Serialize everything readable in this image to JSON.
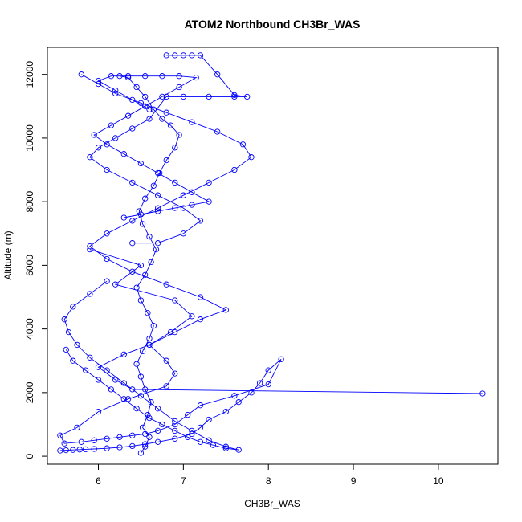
{
  "chart_data": {
    "type": "scatter",
    "title": "ATOM2 Northbound CH3Br_WAS",
    "xlabel": "CH3Br_WAS",
    "ylabel": "Altitude (m)",
    "xlim": [
      5.4,
      10.7
    ],
    "ylim": [
      -250,
      12850
    ],
    "xticks": [
      6,
      7,
      8,
      9,
      10
    ],
    "xtick_labels": [
      "6",
      "7",
      "8",
      "9",
      "10"
    ],
    "yticks": [
      0,
      2000,
      4000,
      6000,
      8000,
      10000,
      12000
    ],
    "ytick_labels": [
      "0",
      "2000",
      "4000",
      "6000",
      "8000",
      "10000",
      "12000"
    ],
    "grid": false,
    "legend": "none",
    "series": [
      {
        "color": "#0000ff",
        "marker": "open-circle",
        "connected": true,
        "x": [
          5.55,
          5.62,
          5.7,
          5.78,
          5.85,
          5.95,
          6.1,
          6.25,
          6.4,
          6.55,
          6.7,
          6.9,
          7.1,
          7.2,
          7.3,
          7.5,
          7.65,
          7.8,
          7.9,
          8.0,
          8.15,
          8.0,
          7.6,
          7.2,
          7.05,
          6.9,
          6.7,
          6.55,
          6.4,
          6.25,
          6.1,
          5.95,
          5.8,
          5.6,
          5.55,
          5.75,
          6.0,
          6.35,
          6.8,
          6.9,
          6.8,
          6.6,
          6.85,
          7.1,
          6.9,
          6.2,
          6.5,
          5.9
        ],
        "y": [
          180,
          190,
          200,
          210,
          220,
          230,
          250,
          280,
          320,
          380,
          450,
          550,
          700,
          900,
          1150,
          1400,
          1700,
          2000,
          2300,
          2700,
          3050,
          2260,
          1900,
          1600,
          1300,
          1000,
          800,
          700,
          650,
          600,
          550,
          500,
          450,
          400,
          650,
          900,
          1400,
          1800,
          2200,
          2600,
          3000,
          3500,
          3900,
          4400,
          4900,
          5400,
          6000,
          6500
        ]
      },
      {
        "color": "#0000ff",
        "marker": "open-circle",
        "connected": true,
        "x": [
          6.5,
          6.55,
          6.6,
          6.52,
          6.58,
          6.62,
          6.55,
          6.5,
          6.45,
          6.52,
          6.6,
          6.65,
          6.58,
          6.5,
          6.45,
          6.55,
          6.62,
          6.68,
          6.6,
          6.52,
          6.48,
          6.55,
          6.65,
          6.72,
          6.8,
          6.9,
          6.95,
          6.85,
          6.75,
          6.65,
          6.55,
          6.45,
          6.35,
          6.25
        ],
        "y": [
          100,
          300,
          600,
          900,
          1300,
          1700,
          2100,
          2500,
          2900,
          3300,
          3700,
          4100,
          4500,
          4900,
          5300,
          5700,
          6100,
          6500,
          6900,
          7300,
          7700,
          8100,
          8500,
          8900,
          9300,
          9700,
          10100,
          10400,
          10600,
          10900,
          11300,
          11600,
          11900,
          11950
        ]
      },
      {
        "color": "#0000ff",
        "marker": "open-circle",
        "connected": true,
        "x": [
          10.52,
          6.4,
          6.2,
          6.0,
          6.3,
          6.6,
          6.9,
          7.2,
          7.5,
          7.2,
          6.8,
          6.4,
          6.1,
          5.9,
          6.1,
          6.4,
          6.7,
          7.0,
          7.3,
          7.6,
          7.8,
          7.7,
          7.4,
          7.1,
          6.8,
          6.5,
          6.2,
          6.0,
          5.8
        ],
        "y": [
          1970,
          2100,
          2400,
          2800,
          3200,
          3500,
          3900,
          4300,
          4600,
          5000,
          5400,
          5800,
          6200,
          6600,
          7000,
          7400,
          7800,
          8200,
          8600,
          9000,
          9400,
          9800,
          10200,
          10500,
          10800,
          11100,
          11400,
          11700,
          12000
        ]
      },
      {
        "color": "#0000ff",
        "marker": "open-circle",
        "connected": true,
        "x": [
          6.8,
          6.9,
          7.0,
          7.1,
          7.2,
          7.4,
          7.6,
          7.75,
          7.6,
          7.3,
          7.0,
          6.8,
          6.6,
          6.4,
          6.2,
          6.0,
          5.9,
          6.1,
          6.4,
          6.7,
          7.0,
          7.2,
          7.0,
          6.7,
          6.4
        ],
        "y": [
          12600,
          12600,
          12600,
          12600,
          12600,
          12000,
          11350,
          11300,
          11300,
          11300,
          11300,
          11300,
          10600,
          10300,
          10000,
          9700,
          9400,
          9000,
          8600,
          8200,
          7800,
          7400,
          7000,
          6700,
          6700
        ]
      },
      {
        "color": "#0000ff",
        "marker": "open-circle",
        "connected": true,
        "x": [
          5.62,
          5.7,
          5.85,
          6.0,
          6.15,
          6.3,
          6.45,
          6.6,
          6.75,
          6.9,
          7.05,
          7.2,
          7.35,
          7.5,
          7.65,
          7.5,
          7.3,
          7.1,
          6.9,
          6.7,
          6.5,
          6.3,
          6.1,
          5.9,
          5.75,
          5.65,
          5.6,
          5.7,
          5.9,
          6.1
        ],
        "y": [
          3350,
          3000,
          2700,
          2400,
          2100,
          1800,
          1500,
          1200,
          1000,
          800,
          600,
          450,
          350,
          250,
          200,
          300,
          500,
          800,
          1100,
          1500,
          1900,
          2300,
          2700,
          3100,
          3500,
          3900,
          4300,
          4700,
          5100,
          5500
        ]
      },
      {
        "color": "#0000ff",
        "marker": "open-circle",
        "connected": true,
        "x": [
          6.3,
          6.5,
          6.7,
          6.9,
          7.1,
          7.3,
          7.1,
          6.9,
          6.7,
          6.5,
          6.3,
          6.1,
          5.95,
          6.15,
          6.35,
          6.55,
          6.75,
          6.95,
          7.15,
          6.95,
          6.75,
          6.55,
          6.35,
          6.15,
          6.0,
          6.2,
          6.4,
          6.6
        ],
        "y": [
          7500,
          7600,
          7700,
          7800,
          7900,
          8000,
          8300,
          8600,
          8900,
          9200,
          9500,
          9800,
          10100,
          10400,
          10700,
          11000,
          11300,
          11600,
          11900,
          11950,
          11950,
          11950,
          11950,
          11950,
          11800,
          11500,
          11200,
          10900
        ]
      }
    ]
  }
}
